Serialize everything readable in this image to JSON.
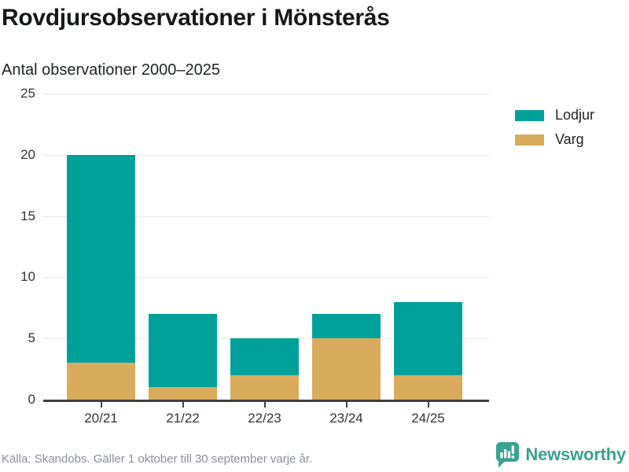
{
  "header": {
    "title": "Rovdjursobservationer i Mönsterås",
    "subtitle": "Antal observationer 2000–2025"
  },
  "chart_data": {
    "type": "bar",
    "stacked": true,
    "title": "Rovdjursobservationer i Mönsterås",
    "subtitle": "Antal observationer 2000–2025",
    "categories": [
      "20/21",
      "21/22",
      "22/23",
      "23/24",
      "24/25"
    ],
    "series": [
      {
        "name": "Varg",
        "color": "#d9ab5c",
        "values": [
          3,
          1,
          2,
          5,
          2
        ]
      },
      {
        "name": "Lodjur",
        "color": "#00a19a",
        "values": [
          17,
          6,
          3,
          2,
          6
        ]
      }
    ],
    "stack_order": "bottom-to-top",
    "totals": [
      20,
      7,
      5,
      7,
      8
    ],
    "xlabel": "",
    "ylabel": "Antal observationer",
    "ylim": [
      0,
      25
    ],
    "yticks": [
      0,
      5,
      10,
      15,
      20,
      25
    ],
    "grid": true,
    "legend_position": "right",
    "legend_order": [
      "Lodjur",
      "Varg"
    ]
  },
  "legend": {
    "items": [
      {
        "label": "Lodjur",
        "color": "#00a19a"
      },
      {
        "label": "Varg",
        "color": "#d9ab5c"
      }
    ]
  },
  "footer": {
    "source": "Källa: Skandobs. Gäller 1 oktober till 30 september varje år.",
    "brand": "Newsworthy"
  },
  "colors": {
    "lodjur": "#00a19a",
    "varg": "#d9ab5c",
    "axis_line": "#3e4042",
    "gridline": "#e8e8e8",
    "axis_text": "#333333",
    "title_text": "#16181a",
    "source_text": "#8b8e99",
    "brand_teal": "#38a28e"
  }
}
